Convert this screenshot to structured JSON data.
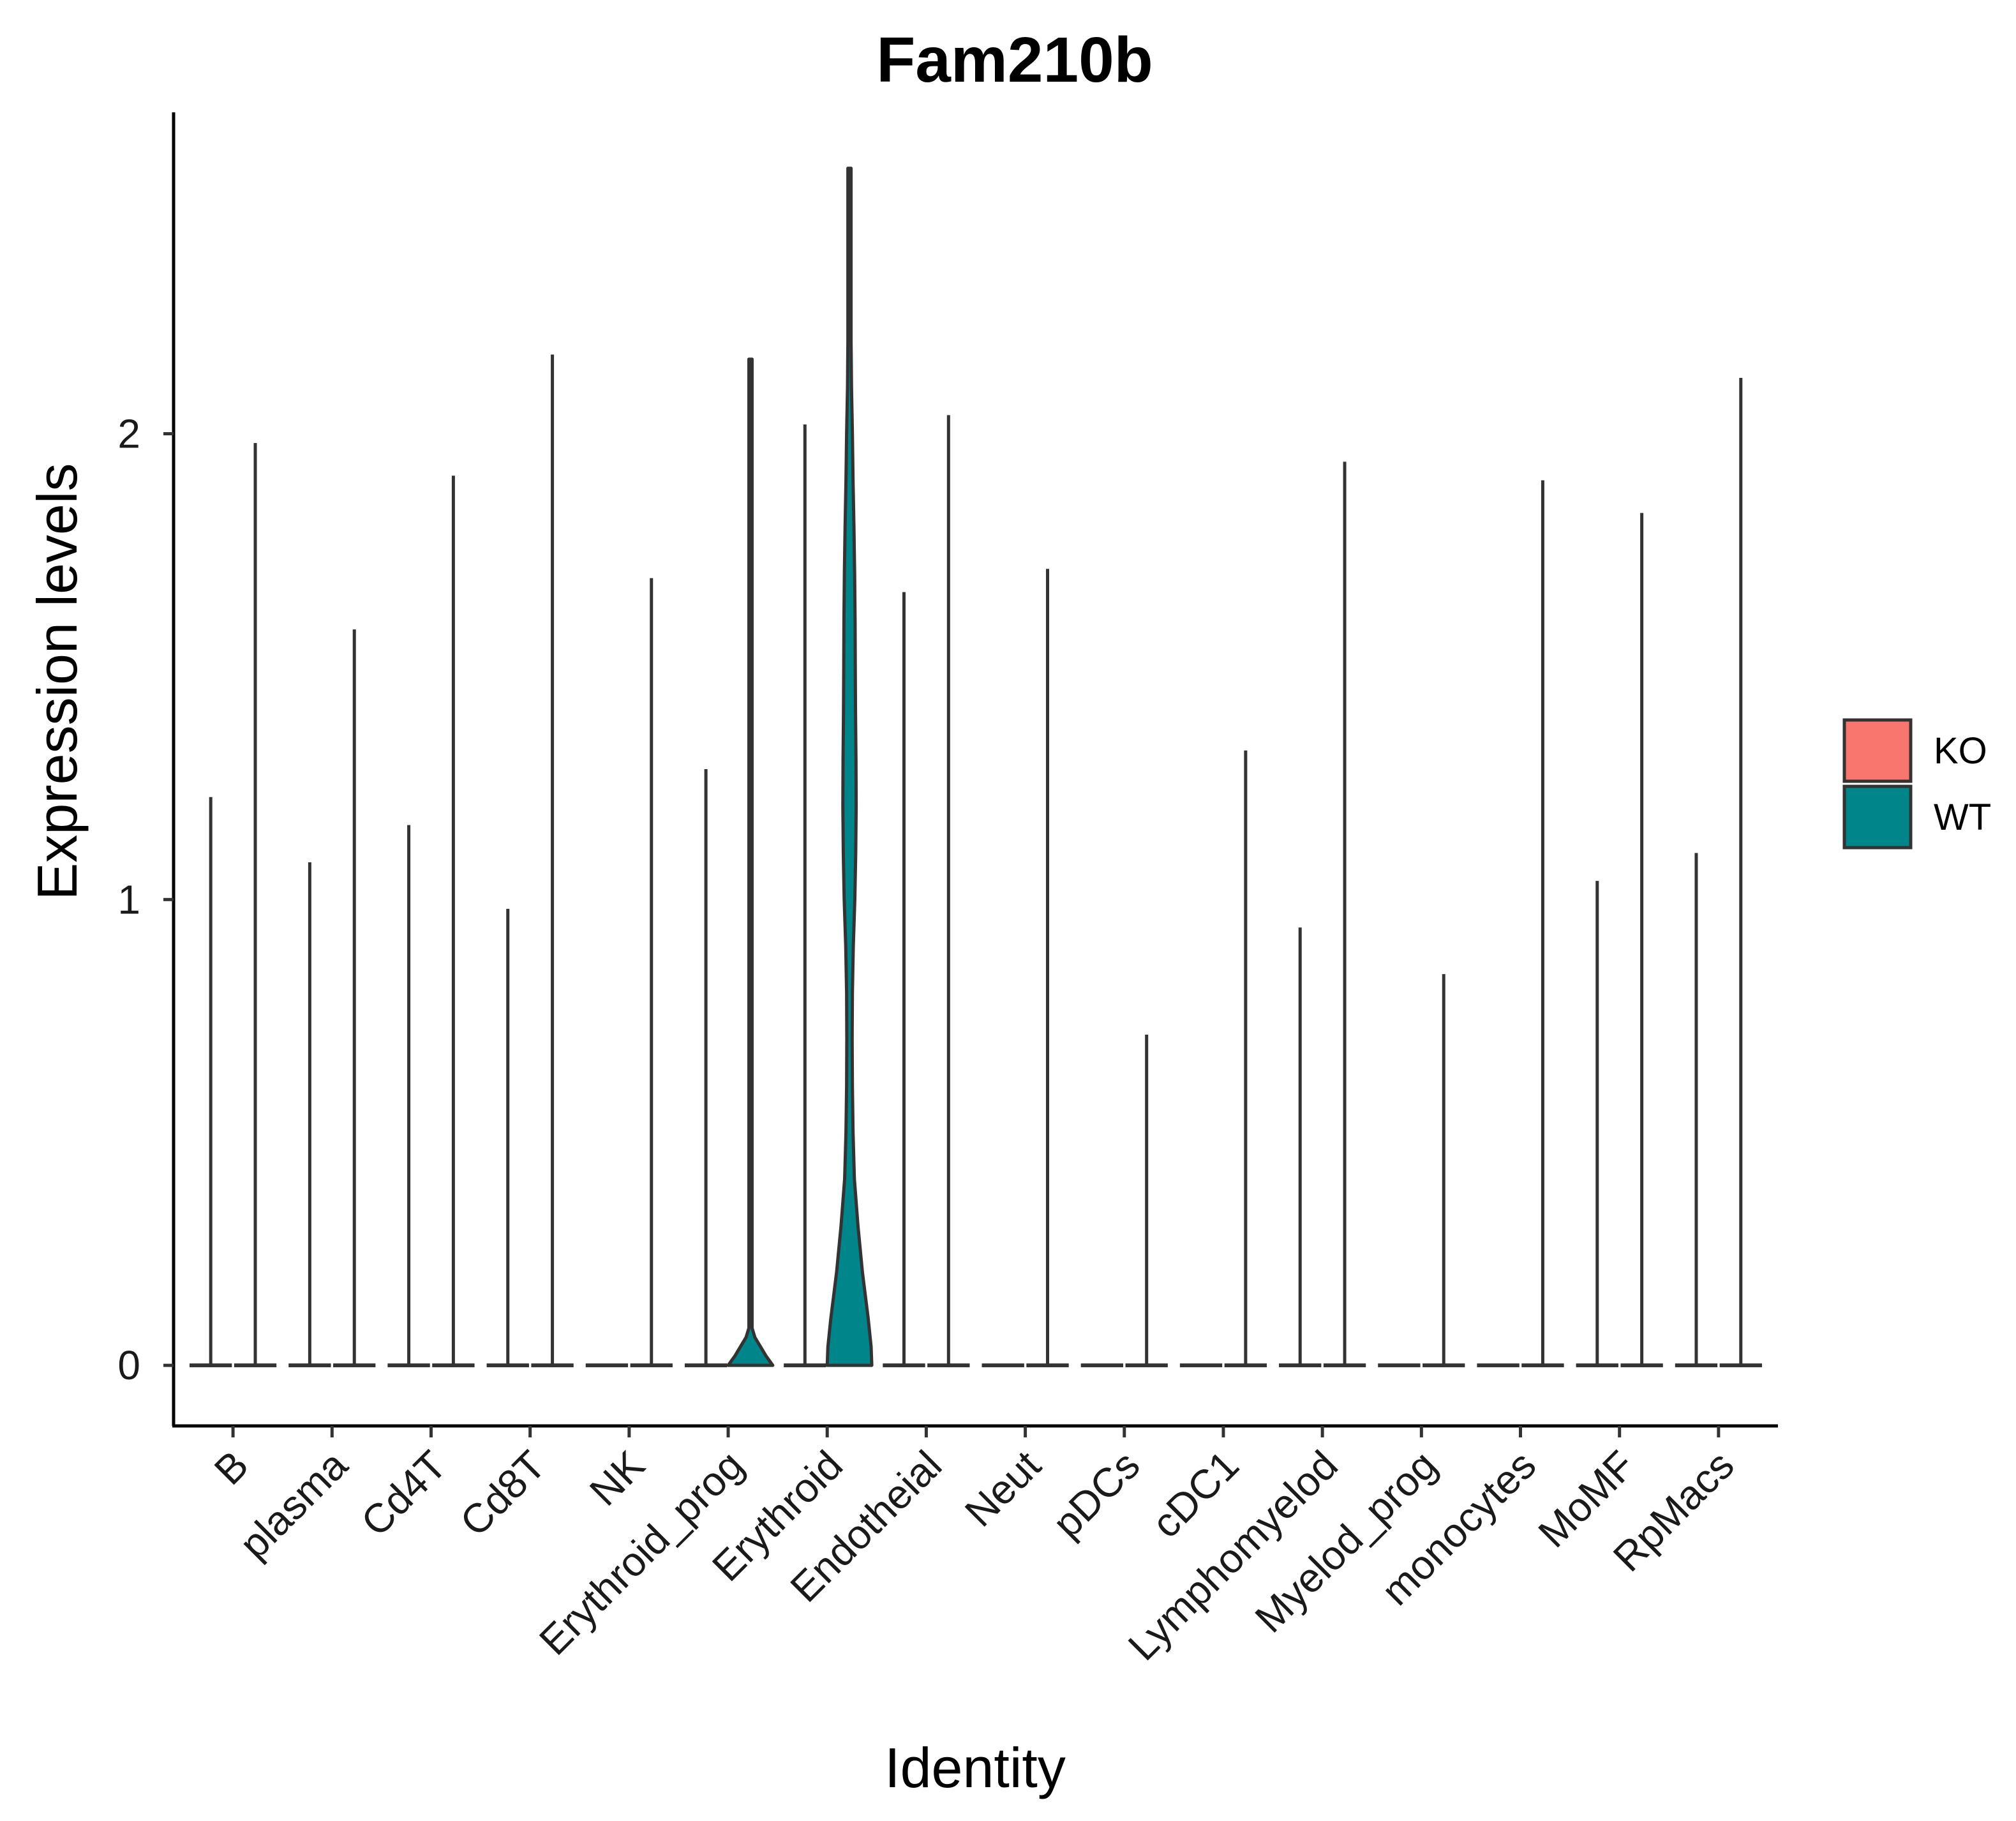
{
  "chart_data": {
    "type": "violin",
    "title": "Fam210b",
    "xlabel": "Identity",
    "ylabel": "Expression levels",
    "ylim": [
      -0.13,
      2.69
    ],
    "yticks": [
      0,
      1,
      2
    ],
    "categories": [
      "B",
      "plasma",
      "Cd4T",
      "Cd8T",
      "NK",
      "Erythroid_prog",
      "Erythroid",
      "Endotheial",
      "Neut",
      "pDCs",
      "cDC1",
      "Lymphomyelod",
      "Myelod_prog",
      "monocytes",
      "MoMF",
      "RpMacs"
    ],
    "series": [
      {
        "name": "KO",
        "color": "#F8766D",
        "max_values": [
          1.22,
          1.08,
          1.16,
          0.98,
          0.0,
          1.28,
          2.02,
          1.66,
          0.0,
          0.0,
          0.0,
          0.94,
          0.0,
          0.0,
          1.04,
          1.1
        ],
        "density": [
          [],
          [],
          [],
          [],
          [],
          [],
          [],
          [],
          [],
          [],
          [],
          [],
          [],
          [],
          [],
          []
        ]
      },
      {
        "name": "WT",
        "color": "#00858A",
        "max_values": [
          1.98,
          1.58,
          1.91,
          2.17,
          1.69,
          2.16,
          2.57,
          2.04,
          1.71,
          0.71,
          1.32,
          1.94,
          0.84,
          1.9,
          1.83,
          2.12
        ],
        "density": [
          [],
          [],
          [],
          [],
          [],
          [
            [
              0,
              1.0
            ],
            [
              0.02,
              0.7
            ],
            [
              0.04,
              0.45
            ],
            [
              0.06,
              0.2
            ],
            [
              0.08,
              0.06
            ],
            [
              0.1,
              0.02
            ],
            [
              0.2,
              0.01
            ],
            [
              1.0,
              0.01
            ],
            [
              2.16,
              0.0
            ]
          ],
          [
            [
              0,
              1.0
            ],
            [
              0.04,
              0.97
            ],
            [
              0.1,
              0.84
            ],
            [
              0.2,
              0.58
            ],
            [
              0.3,
              0.38
            ],
            [
              0.4,
              0.22
            ],
            [
              0.5,
              0.16
            ],
            [
              0.6,
              0.13
            ],
            [
              0.7,
              0.12
            ],
            [
              0.8,
              0.13
            ],
            [
              0.9,
              0.17
            ],
            [
              1.0,
              0.24
            ],
            [
              1.1,
              0.28
            ],
            [
              1.2,
              0.3
            ],
            [
              1.3,
              0.29
            ],
            [
              1.4,
              0.27
            ],
            [
              1.5,
              0.26
            ],
            [
              1.6,
              0.25
            ],
            [
              1.7,
              0.23
            ],
            [
              1.8,
              0.2
            ],
            [
              1.9,
              0.16
            ],
            [
              2.0,
              0.13
            ],
            [
              2.1,
              0.09
            ],
            [
              2.2,
              0.05
            ],
            [
              2.3,
              0.02
            ],
            [
              2.4,
              0.01
            ],
            [
              2.57,
              0.0
            ]
          ],
          [],
          [],
          [],
          [],
          [],
          [],
          [],
          [],
          []
        ]
      }
    ],
    "legend_position": "right",
    "grid": false
  }
}
